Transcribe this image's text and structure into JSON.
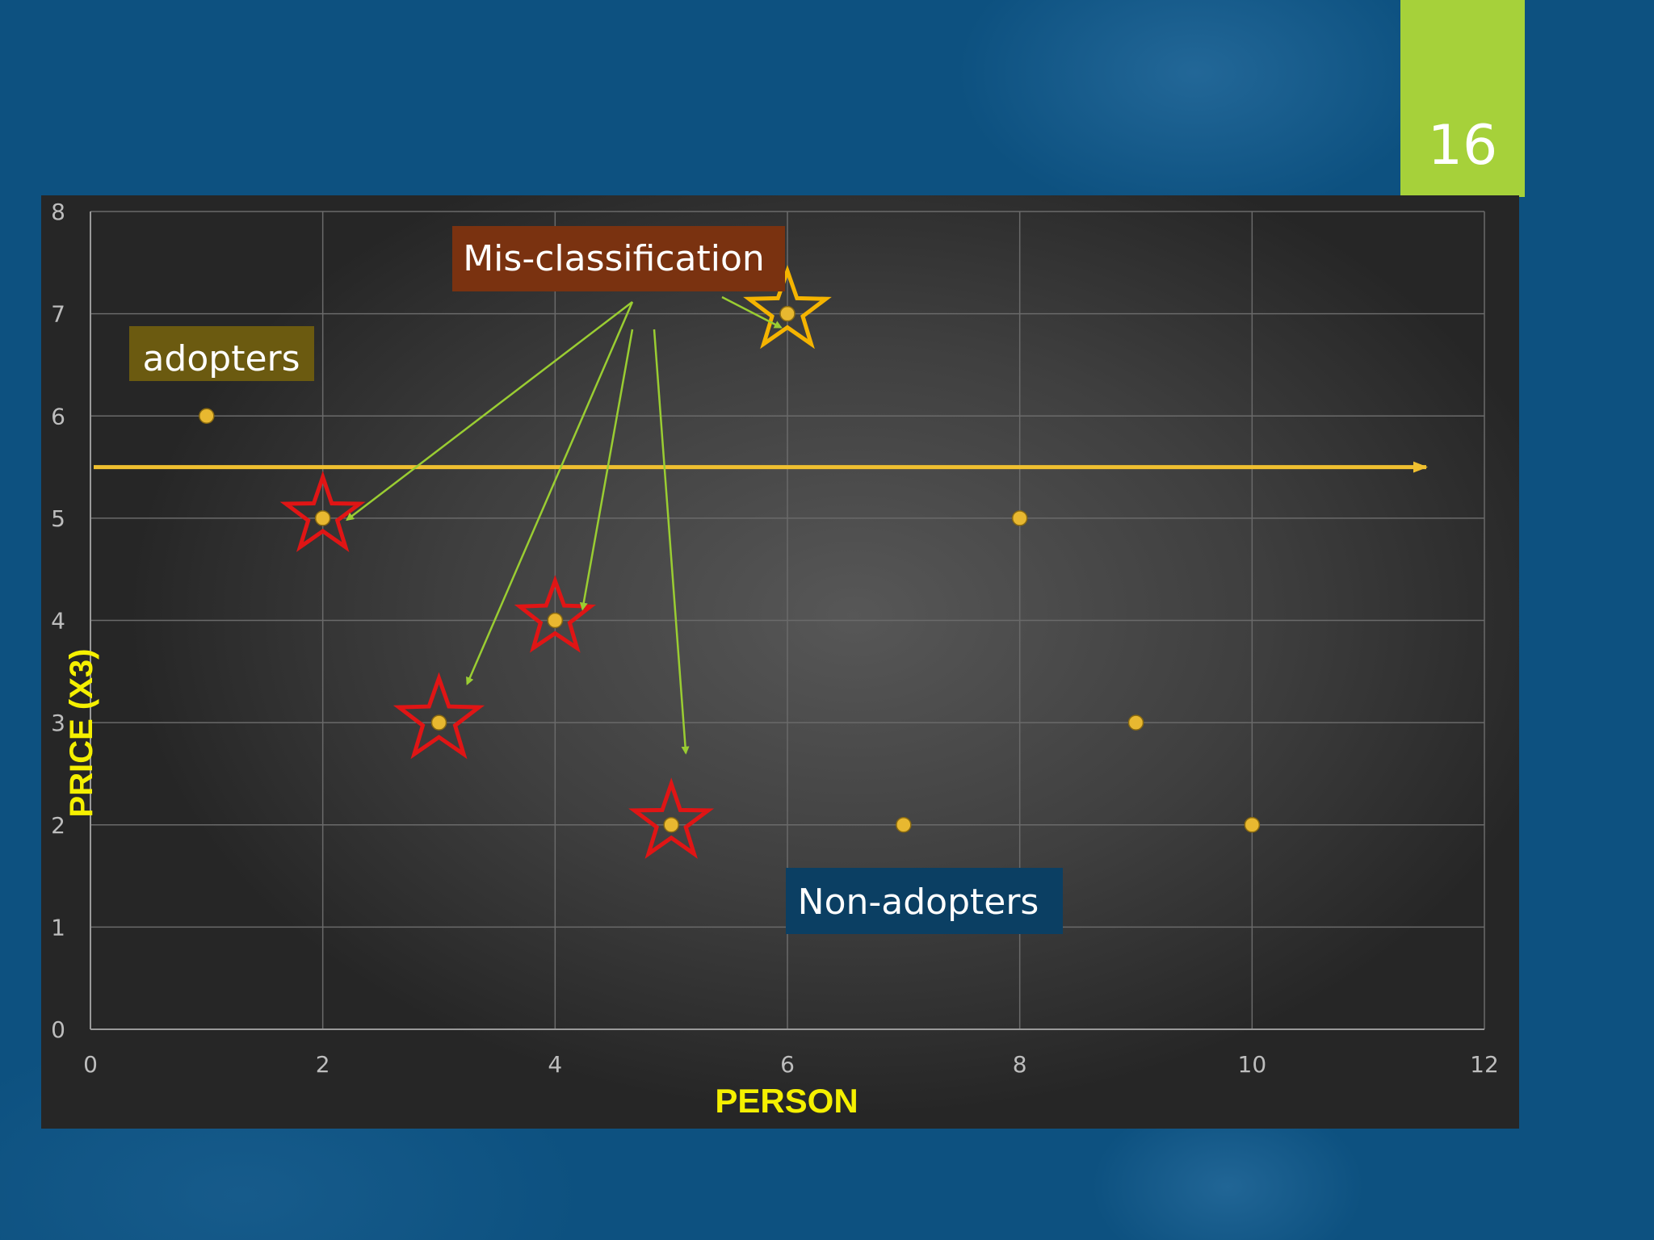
{
  "slide": {
    "number": "16"
  },
  "chart_data": {
    "type": "scatter",
    "title": "",
    "xlabel": "PERSON",
    "ylabel": "PRICE (X3)",
    "xlim": [
      0,
      12
    ],
    "ylim": [
      0,
      8
    ],
    "x_ticks": [
      "0",
      "2",
      "4",
      "6",
      "8",
      "10",
      "12"
    ],
    "y_ticks": [
      "0",
      "1",
      "2",
      "3",
      "4",
      "5",
      "6",
      "7",
      "8"
    ],
    "grid": true,
    "series": [
      {
        "x": [
          1,
          2,
          3,
          4,
          5,
          6,
          7,
          8,
          9,
          10
        ],
        "y": [
          6,
          5,
          3,
          4,
          2,
          7,
          2,
          5,
          3,
          2
        ]
      }
    ],
    "divider_line": {
      "y": 5.5,
      "color": "#f0c030"
    },
    "misclassified": [
      {
        "x": 2,
        "y": 5,
        "color": "#e01515"
      },
      {
        "x": 3,
        "y": 3,
        "color": "#e01515"
      },
      {
        "x": 4,
        "y": 4,
        "color": "#e01515"
      },
      {
        "x": 5,
        "y": 2,
        "color": "#e01515"
      },
      {
        "x": 6,
        "y": 7,
        "color": "#f5b400"
      }
    ],
    "annotations": {
      "adopters": "adopters",
      "non_adopters": "Non-adopters",
      "misclassification": "Mis-classification"
    },
    "colors": {
      "point": "#e8b830",
      "axis_title": "#f5f000",
      "tick_label": "#bdbdbd",
      "arrow": "#9acd32",
      "adopters_box": "#6b5a10",
      "misclass_box": "#7a3210",
      "non_adopters_box": "#0b3f63"
    }
  }
}
